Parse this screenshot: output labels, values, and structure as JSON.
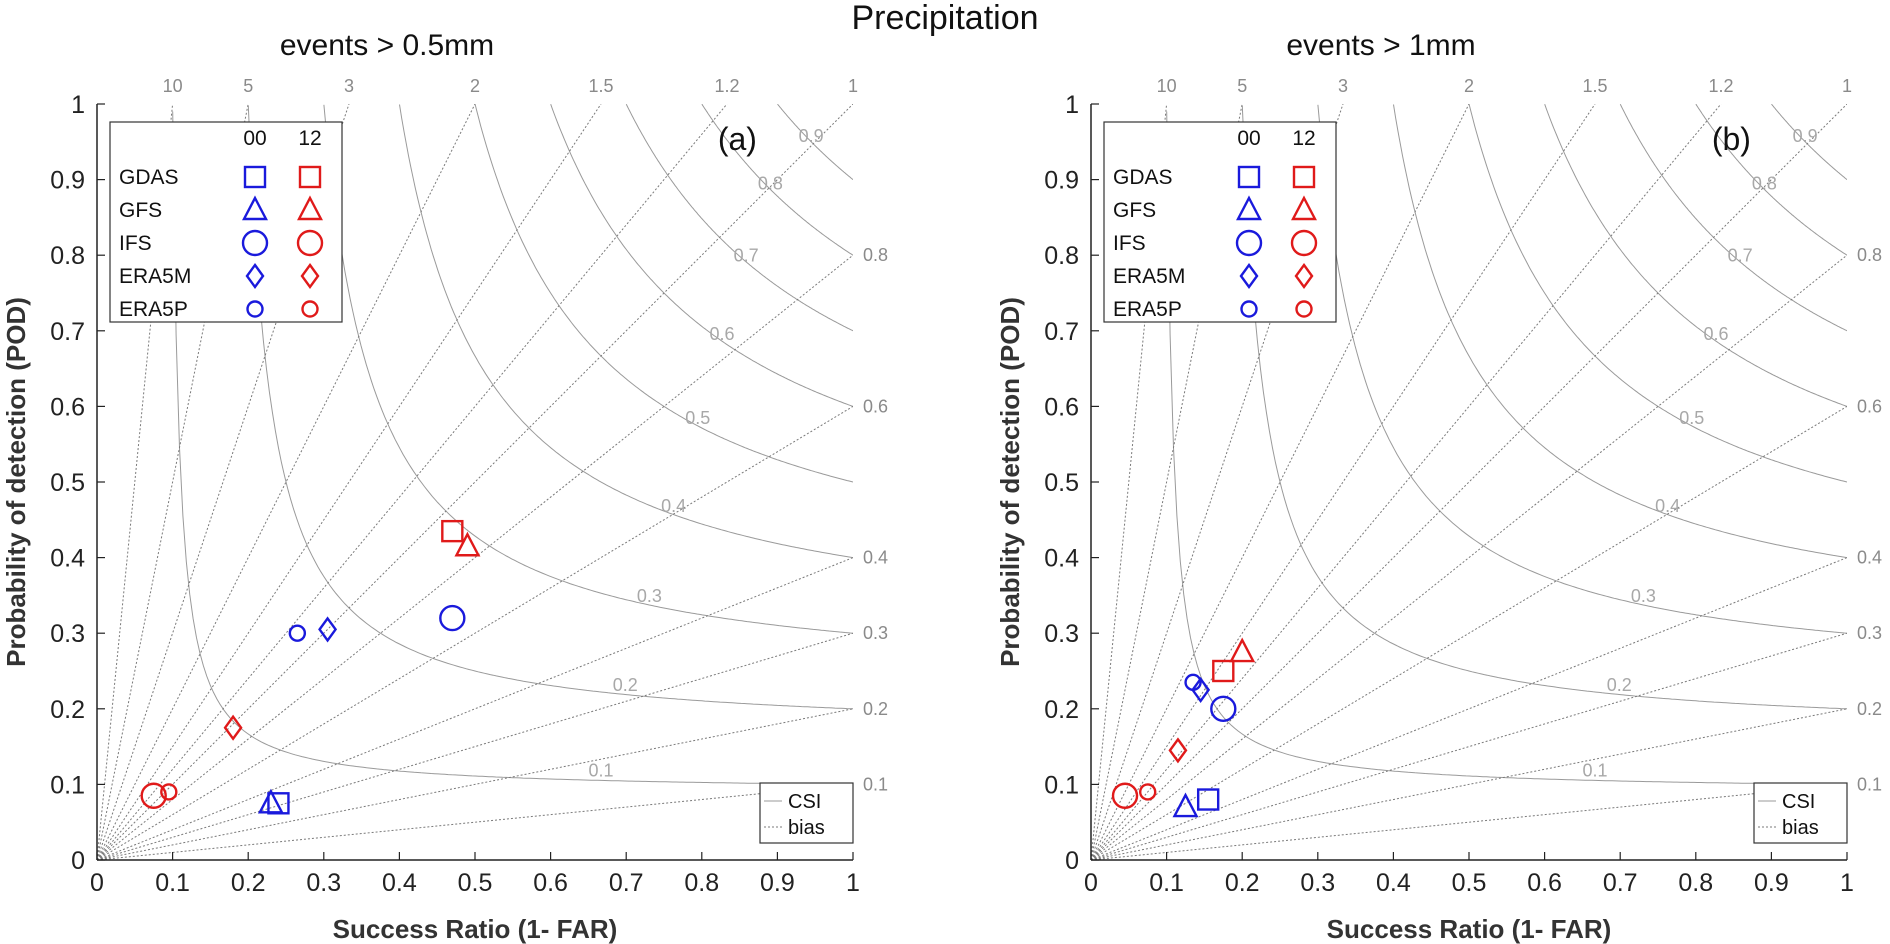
{
  "figure": {
    "title": "Precipitation"
  },
  "chart_data": [
    {
      "type": "scatter",
      "subtype": "performance_diagram",
      "panel_label": "(a)",
      "top_title": "events  > 0.5mm",
      "xlabel": "Success Ratio (1- FAR)",
      "ylabel": "Probability of detection (POD)",
      "xlim": [
        0,
        1
      ],
      "ylim": [
        0,
        1
      ],
      "xticks": [
        "0",
        "0.1",
        "0.2",
        "0.3",
        "0.4",
        "0.5",
        "0.6",
        "0.7",
        "0.8",
        "0.9",
        "1"
      ],
      "yticks": [
        "0",
        "0.1",
        "0.2",
        "0.3",
        "0.4",
        "0.5",
        "0.6",
        "0.7",
        "0.8",
        "0.9",
        "1"
      ],
      "bias_lines": [
        10,
        5,
        3,
        2,
        1.5,
        1.2,
        1,
        0.8,
        0.6,
        0.4,
        0.3,
        0.2,
        0.1
      ],
      "bias_labels_top": [
        "10",
        "5",
        "3",
        "2",
        "1.5",
        "1.2",
        "1"
      ],
      "bias_labels_right": [
        "0.8",
        "0.6",
        "0.4",
        "0.3",
        "0.2",
        "0.1"
      ],
      "csi_contours": [
        0.1,
        0.2,
        0.3,
        0.4,
        0.5,
        0.6,
        0.7,
        0.8,
        0.9
      ],
      "legend": {
        "col_headers": [
          "00",
          "12"
        ],
        "rows": [
          {
            "name": "GDAS",
            "marker": "square"
          },
          {
            "name": "GFS",
            "marker": "triangle"
          },
          {
            "name": "IFS",
            "marker": "circle-large"
          },
          {
            "name": "ERA5M",
            "marker": "diamond"
          },
          {
            "name": "ERA5P",
            "marker": "circle-small"
          }
        ],
        "placement": "top-left"
      },
      "line_legend": {
        "entries": [
          "CSI",
          "bias"
        ],
        "placement": "bottom-right"
      },
      "colors": {
        "00": "#1a1adc",
        "12": "#e01a1a"
      },
      "series": [
        {
          "name": "GDAS",
          "cycle": "00",
          "x": 0.24,
          "y": 0.075
        },
        {
          "name": "GDAS",
          "cycle": "12",
          "x": 0.47,
          "y": 0.435
        },
        {
          "name": "GFS",
          "cycle": "00",
          "x": 0.23,
          "y": 0.075
        },
        {
          "name": "GFS",
          "cycle": "12",
          "x": 0.49,
          "y": 0.415
        },
        {
          "name": "IFS",
          "cycle": "00",
          "x": 0.47,
          "y": 0.32
        },
        {
          "name": "IFS",
          "cycle": "12",
          "x": 0.075,
          "y": 0.085
        },
        {
          "name": "ERA5M",
          "cycle": "00",
          "x": 0.305,
          "y": 0.305
        },
        {
          "name": "ERA5M",
          "cycle": "12",
          "x": 0.18,
          "y": 0.175
        },
        {
          "name": "ERA5P",
          "cycle": "00",
          "x": 0.265,
          "y": 0.3
        },
        {
          "name": "ERA5P",
          "cycle": "12",
          "x": 0.095,
          "y": 0.09
        }
      ]
    },
    {
      "type": "scatter",
      "subtype": "performance_diagram",
      "panel_label": "(b)",
      "top_title": "events  > 1mm",
      "xlabel": "Success Ratio (1- FAR)",
      "ylabel": "Probability of detection (POD)",
      "xlim": [
        0,
        1
      ],
      "ylim": [
        0,
        1
      ],
      "xticks": [
        "0",
        "0.1",
        "0.2",
        "0.3",
        "0.4",
        "0.5",
        "0.6",
        "0.7",
        "0.8",
        "0.9",
        "1"
      ],
      "yticks": [
        "0",
        "0.1",
        "0.2",
        "0.3",
        "0.4",
        "0.5",
        "0.6",
        "0.7",
        "0.8",
        "0.9",
        "1"
      ],
      "bias_lines": [
        10,
        5,
        3,
        2,
        1.5,
        1.2,
        1,
        0.8,
        0.6,
        0.4,
        0.3,
        0.2,
        0.1
      ],
      "bias_labels_top": [
        "10",
        "5",
        "3",
        "2",
        "1.5",
        "1.2",
        "1"
      ],
      "bias_labels_right": [
        "0.8",
        "0.6",
        "0.4",
        "0.3",
        "0.2",
        "0.1"
      ],
      "csi_contours": [
        0.1,
        0.2,
        0.3,
        0.4,
        0.5,
        0.6,
        0.7,
        0.8,
        0.9
      ],
      "legend": {
        "col_headers": [
          "00",
          "12"
        ],
        "rows": [
          {
            "name": "GDAS",
            "marker": "square"
          },
          {
            "name": "GFS",
            "marker": "triangle"
          },
          {
            "name": "IFS",
            "marker": "circle-large"
          },
          {
            "name": "ERA5M",
            "marker": "diamond"
          },
          {
            "name": "ERA5P",
            "marker": "circle-small"
          }
        ],
        "placement": "top-left"
      },
      "line_legend": {
        "entries": [
          "CSI",
          "bias"
        ],
        "placement": "bottom-right"
      },
      "colors": {
        "00": "#1a1adc",
        "12": "#e01a1a"
      },
      "series": [
        {
          "name": "GDAS",
          "cycle": "00",
          "x": 0.155,
          "y": 0.08
        },
        {
          "name": "GDAS",
          "cycle": "12",
          "x": 0.175,
          "y": 0.25
        },
        {
          "name": "GFS",
          "cycle": "00",
          "x": 0.125,
          "y": 0.07
        },
        {
          "name": "GFS",
          "cycle": "12",
          "x": 0.2,
          "y": 0.275
        },
        {
          "name": "IFS",
          "cycle": "00",
          "x": 0.175,
          "y": 0.2
        },
        {
          "name": "IFS",
          "cycle": "12",
          "x": 0.045,
          "y": 0.085
        },
        {
          "name": "ERA5M",
          "cycle": "00",
          "x": 0.145,
          "y": 0.225
        },
        {
          "name": "ERA5M",
          "cycle": "12",
          "x": 0.115,
          "y": 0.145
        },
        {
          "name": "ERA5P",
          "cycle": "00",
          "x": 0.135,
          "y": 0.235
        },
        {
          "name": "ERA5P",
          "cycle": "12",
          "x": 0.075,
          "y": 0.09
        }
      ]
    }
  ]
}
